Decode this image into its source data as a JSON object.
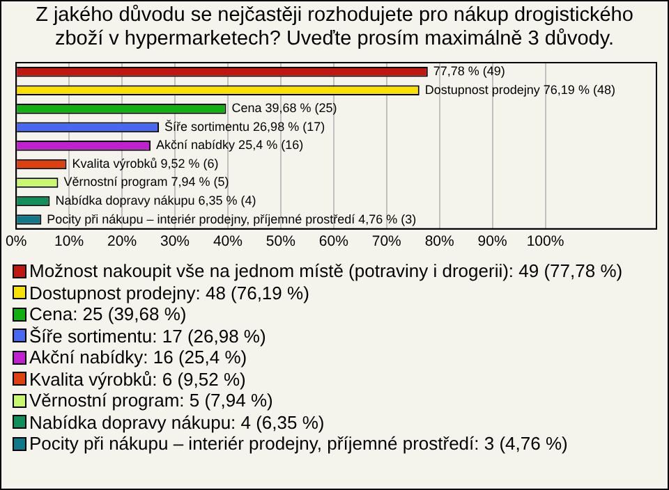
{
  "chart_data": {
    "type": "bar",
    "orientation": "horizontal",
    "title": "Z jakého důvodu se nejčastěji rozhodujete pro nákup drogistického zboží v hypermarketech? Uveďte prosím maximálně 3 důvody.",
    "categories": [
      null,
      null,
      null,
      null,
      null,
      null,
      null,
      null,
      null
    ],
    "values": [
      77.78,
      76.19,
      39.68,
      26.98,
      25.4,
      9.52,
      7.94,
      6.35,
      4.76
    ],
    "colors": [
      "#c01810",
      "#f8e000",
      "#10b010",
      "#4868f0",
      "#c020d0",
      "#e04010",
      "#c8f870",
      "#109058",
      "#107888"
    ],
    "value_labels": [
      "77,78 % (49)",
      "Dostupnost prodejny 76,19 % (48)",
      "Cena 39,68 % (25)",
      "Šíře sortimentu 26,98 % (17)",
      "Akční nabídky 25,4 % (16)",
      "Kvalita výrobků 9,52 % (6)",
      "Věrnostní program 7,94 % (5)",
      "Nabídka dopravy nákupu 6,35 % (4)",
      "Pocity při nákupu – interiér prodejny, příjemné prostředí 4,76 % (3)"
    ],
    "xlim": [
      0,
      121
    ],
    "xticks": [
      {
        "value": 0,
        "label": "0%"
      },
      {
        "value": 10,
        "label": "10%"
      },
      {
        "value": 20,
        "label": "20%"
      },
      {
        "value": 30,
        "label": "30%"
      },
      {
        "value": 40,
        "label": "40%"
      },
      {
        "value": 50,
        "label": "50%"
      },
      {
        "value": 60,
        "label": "60%"
      },
      {
        "value": 70,
        "label": "70%"
      },
      {
        "value": 80,
        "label": "80%"
      },
      {
        "value": 90,
        "label": "90%"
      },
      {
        "value": 100,
        "label": "100%"
      }
    ],
    "grid": "x",
    "annotations": [
      "Možnost nakoupit vše na jednom místě (potraviny i drogerii): 49 (77,78 %)",
      "Dostupnost prodejny: 48 (76,19 %)",
      "Cena: 25 (39,68 %)",
      "Šíře sortimentu: 17 (26,98 %)",
      "Akční nabídky: 16 (25,4 %)",
      "Kvalita výrobků: 6 (9,52 %)",
      "Věrnostní program: 5 (7,94 %)",
      "Nabídka dopravy nákupu: 4 (6,35 %)",
      "Pocity při nákupu – interiér prodejny, příjemné prostředí: 3 (4,76 %)"
    ]
  }
}
